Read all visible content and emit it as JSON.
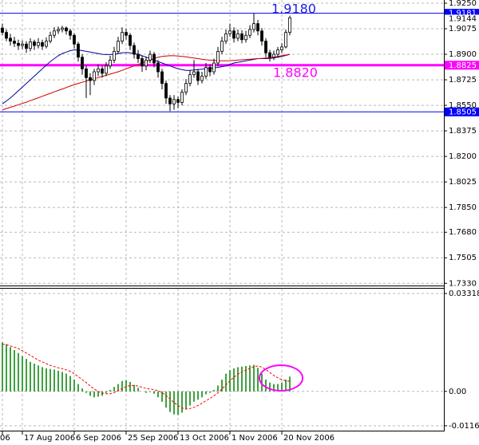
{
  "chart_data": [
    {
      "type": "candlestick",
      "categories": [
        "06",
        null,
        null,
        null,
        null,
        "17 Aug 2006",
        null,
        null,
        null,
        null,
        null,
        null,
        null,
        null,
        null,
        null,
        null,
        null,
        "6 Sep 2006",
        null,
        null,
        null,
        null,
        null,
        null,
        null,
        null,
        null,
        null,
        null,
        null,
        "25 Sep 2006",
        null,
        null,
        null,
        null,
        null,
        null,
        null,
        null,
        null,
        null,
        null,
        null,
        "13 Oct 2006",
        null,
        null,
        null,
        null,
        null,
        null,
        null,
        null,
        null,
        null,
        null,
        null,
        "1 Nov 2006",
        null,
        null,
        null,
        null,
        null,
        null,
        null,
        null,
        null,
        null,
        null,
        null,
        "20 Nov 2006",
        null,
        null
      ],
      "open": [
        1.908,
        1.905,
        1.901,
        1.899,
        1.8975,
        1.896,
        1.897,
        1.894,
        1.8985,
        1.896,
        1.898,
        1.8955,
        1.899,
        1.903,
        1.906,
        1.907,
        1.908,
        1.906,
        1.903,
        1.897,
        1.888,
        1.88,
        1.874,
        1.872,
        1.878,
        1.88,
        1.877,
        1.882,
        1.886,
        1.892,
        1.899,
        1.905,
        1.903,
        1.896,
        1.89,
        1.887,
        1.882,
        1.886,
        1.89,
        1.884,
        1.878,
        1.87,
        1.86,
        1.856,
        1.859,
        1.857,
        1.864,
        1.87,
        1.876,
        1.878,
        1.872,
        1.875,
        1.881,
        1.878,
        1.884,
        1.892,
        1.899,
        1.904,
        1.906,
        1.901,
        1.904,
        1.9,
        1.903,
        1.907,
        1.911,
        1.906,
        1.899,
        1.891,
        1.888,
        1.89,
        1.893,
        1.895,
        1.905
      ],
      "high": [
        1.911,
        1.907,
        1.904,
        1.902,
        1.9,
        1.8995,
        1.899,
        1.901,
        1.9,
        1.901,
        1.9,
        1.9015,
        1.9055,
        1.9085,
        1.909,
        1.9095,
        1.909,
        1.9075,
        1.9045,
        1.8985,
        1.89,
        1.882,
        1.877,
        1.88,
        1.883,
        1.882,
        1.8845,
        1.889,
        1.895,
        1.902,
        1.9085,
        1.9075,
        1.9045,
        1.898,
        1.893,
        1.889,
        1.8885,
        1.8925,
        1.8915,
        1.886,
        1.88,
        1.872,
        1.862,
        1.862,
        1.861,
        1.866,
        1.873,
        1.879,
        1.886,
        1.88,
        1.878,
        1.884,
        1.883,
        1.887,
        1.895,
        1.902,
        1.907,
        1.911,
        1.9085,
        1.907,
        1.9065,
        1.906,
        1.91,
        1.918,
        1.9135,
        1.908,
        1.901,
        1.893,
        1.8925,
        1.895,
        1.8975,
        1.907,
        1.9165
      ],
      "low": [
        1.903,
        1.899,
        1.896,
        1.895,
        1.893,
        1.8935,
        1.891,
        1.892,
        1.893,
        1.894,
        1.893,
        1.894,
        1.8975,
        1.901,
        1.904,
        1.905,
        1.9035,
        1.9,
        1.894,
        1.885,
        1.876,
        1.86,
        1.862,
        1.869,
        1.875,
        1.874,
        1.875,
        1.88,
        1.884,
        1.89,
        1.897,
        1.9,
        1.893,
        1.887,
        1.884,
        1.878,
        1.879,
        1.884,
        1.881,
        1.874,
        1.866,
        1.856,
        1.851,
        1.852,
        1.853,
        1.855,
        1.862,
        1.868,
        1.874,
        1.869,
        1.87,
        1.873,
        1.875,
        1.876,
        1.882,
        1.89,
        1.897,
        1.902,
        1.898,
        1.899,
        1.8975,
        1.898,
        1.901,
        1.905,
        1.903,
        1.896,
        1.888,
        1.885,
        1.886,
        1.888,
        1.891,
        1.894,
        1.903
      ],
      "close": [
        1.905,
        1.901,
        1.899,
        1.8975,
        1.896,
        1.897,
        1.894,
        1.8985,
        1.896,
        1.898,
        1.8955,
        1.899,
        1.903,
        1.906,
        1.907,
        1.908,
        1.906,
        1.903,
        1.897,
        1.888,
        1.88,
        1.874,
        1.872,
        1.878,
        1.88,
        1.877,
        1.882,
        1.886,
        1.892,
        1.899,
        1.905,
        1.903,
        1.896,
        1.89,
        1.887,
        1.882,
        1.886,
        1.89,
        1.884,
        1.878,
        1.87,
        1.86,
        1.856,
        1.859,
        1.857,
        1.864,
        1.87,
        1.876,
        1.878,
        1.872,
        1.875,
        1.881,
        1.878,
        1.884,
        1.892,
        1.899,
        1.904,
        1.906,
        1.901,
        1.904,
        1.9,
        1.903,
        1.907,
        1.911,
        1.906,
        1.899,
        1.891,
        1.888,
        1.89,
        1.893,
        1.895,
        1.905,
        1.915
      ],
      "series": [
        {
          "color": "#0000a0",
          "values": [
            1.856,
            1.858,
            1.86,
            1.8625,
            1.865,
            1.8675,
            1.87,
            1.8725,
            1.875,
            1.8775,
            1.88,
            1.8825,
            1.885,
            1.887,
            1.889,
            1.8905,
            1.8915,
            1.8925,
            1.893,
            1.893,
            1.8925,
            1.892,
            1.8915,
            1.891,
            1.8905,
            1.89,
            1.8898,
            1.8898,
            1.89,
            1.8905,
            1.891,
            1.8912,
            1.891,
            1.8905,
            1.89,
            1.889,
            1.888,
            1.887,
            1.886,
            1.885,
            1.884,
            1.883,
            1.882,
            1.881,
            1.88,
            1.8795,
            1.879,
            1.879,
            1.8792,
            1.8795,
            1.8798,
            1.88,
            1.8803,
            1.8806,
            1.881,
            1.8815,
            1.882,
            1.883,
            1.884,
            1.8845,
            1.885,
            1.8855,
            1.886,
            1.8865,
            1.887,
            1.887,
            1.887,
            1.8872,
            1.8875,
            1.888,
            1.8885,
            1.8892,
            1.89
          ]
        },
        {
          "color": "#d00000",
          "values": [
            1.852,
            1.8528,
            1.8536,
            1.8545,
            1.8554,
            1.8563,
            1.8572,
            1.8582,
            1.8592,
            1.8602,
            1.8612,
            1.8622,
            1.8632,
            1.8642,
            1.8652,
            1.8662,
            1.8672,
            1.8682,
            1.8692,
            1.87,
            1.8708,
            1.8716,
            1.8724,
            1.8732,
            1.874,
            1.8748,
            1.8756,
            1.8764,
            1.8772,
            1.878,
            1.879,
            1.88,
            1.881,
            1.882,
            1.883,
            1.884,
            1.885,
            1.886,
            1.887,
            1.888,
            1.8885,
            1.8888,
            1.889,
            1.889,
            1.8888,
            1.8885,
            1.8882,
            1.8878,
            1.8874,
            1.887,
            1.8866,
            1.8862,
            1.886,
            1.8858,
            1.8856,
            1.8855,
            1.8855,
            1.8856,
            1.8858,
            1.886,
            1.8862,
            1.8864,
            1.8866,
            1.8868,
            1.887,
            1.8872,
            1.8874,
            1.8876,
            1.888,
            1.8885,
            1.889,
            1.8895,
            1.89
          ]
        }
      ],
      "levels": [
        {
          "value": 1.9181,
          "color": "#0000ff"
        },
        {
          "value": 1.8825,
          "color": "#ff00ff"
        },
        {
          "value": 1.8505,
          "color": "#0000ff"
        }
      ],
      "last_price": 1.9144,
      "annotations": [
        {
          "text": "1.9180",
          "color": "#2020e0"
        },
        {
          "text": "1.8820",
          "color": "#ff00ff"
        }
      ],
      "ylim": [
        1.7315,
        1.9272
      ],
      "yticks": [
        {
          "value": 1.925,
          "label": "1.9250"
        },
        1.9075,
        {
          "value": 1.89,
          "label": "1.8900"
        },
        1.8725,
        {
          "value": 1.855,
          "label": "1.8550"
        },
        1.8375,
        {
          "value": 1.82,
          "label": "1.8200"
        },
        1.8025,
        {
          "value": 1.785,
          "label": "1.7850"
        },
        {
          "value": 1.768,
          "label": "1.7680"
        },
        1.7505,
        {
          "value": 1.733,
          "label": "1.7330"
        }
      ],
      "grid": true
    },
    {
      "type": "macd",
      "series": [
        {
          "color": "#008000",
          "values": [
            0.0166,
            0.016,
            0.015,
            0.014,
            0.013,
            0.012,
            0.011,
            0.01,
            0.0094,
            0.0088,
            0.0082,
            0.0078,
            0.0076,
            0.0074,
            0.007,
            0.0066,
            0.006,
            0.0052,
            0.004,
            0.0025,
            0.001,
            -0.0005,
            -0.0015,
            -0.002,
            -0.0018,
            -0.0015,
            -0.0005,
            0.0005,
            0.0015,
            0.0025,
            0.0035,
            0.0038,
            0.0032,
            0.0022,
            0.0012,
            0.0,
            -0.0005,
            -0.0002,
            -0.0008,
            -0.002,
            -0.0035,
            -0.0055,
            -0.007,
            -0.0078,
            -0.008,
            -0.0072,
            -0.006,
            -0.0048,
            -0.0035,
            -0.0028,
            -0.002,
            -0.001,
            -0.0005,
            0.0005,
            0.002,
            0.004,
            0.006,
            0.0072,
            0.0078,
            0.0082,
            0.0084,
            0.0086,
            0.0088,
            0.009,
            0.008,
            0.006,
            0.004,
            0.003,
            0.0025,
            0.0025,
            0.003,
            0.004,
            0.005
          ]
        },
        {
          "color": "#ff0000",
          "values": [
            0.016,
            0.0158,
            0.0154,
            0.015,
            0.0145,
            0.0138,
            0.013,
            0.0122,
            0.0114,
            0.0106,
            0.01,
            0.0094,
            0.0088,
            0.0084,
            0.008,
            0.0077,
            0.0073,
            0.0068,
            0.006,
            0.005,
            0.004,
            0.003,
            0.0018,
            0.0008,
            0.0,
            -0.0006,
            -0.0008,
            -0.0008,
            -0.0004,
            0.0002,
            0.001,
            0.0016,
            0.002,
            0.002,
            0.0018,
            0.0014,
            0.001,
            0.0008,
            0.0006,
            0.0002,
            -0.0004,
            -0.0014,
            -0.0026,
            -0.0038,
            -0.0048,
            -0.0056,
            -0.006,
            -0.0058,
            -0.0054,
            -0.0048,
            -0.004,
            -0.0032,
            -0.0024,
            -0.0015,
            -0.0005,
            0.0008,
            0.0022,
            0.0036,
            0.0048,
            0.0058,
            0.0066,
            0.0072,
            0.0078,
            0.0084,
            0.0086,
            0.0082,
            0.0074,
            0.0064,
            0.0054,
            0.0046,
            0.004,
            0.0036,
            0.0034
          ]
        }
      ],
      "ylim": [
        -0.0133,
        0.0348
      ],
      "yticks": [
        0.03318,
        {
          "value": 0,
          "label": "0.00"
        },
        -0.01165
      ],
      "grid": true
    }
  ]
}
